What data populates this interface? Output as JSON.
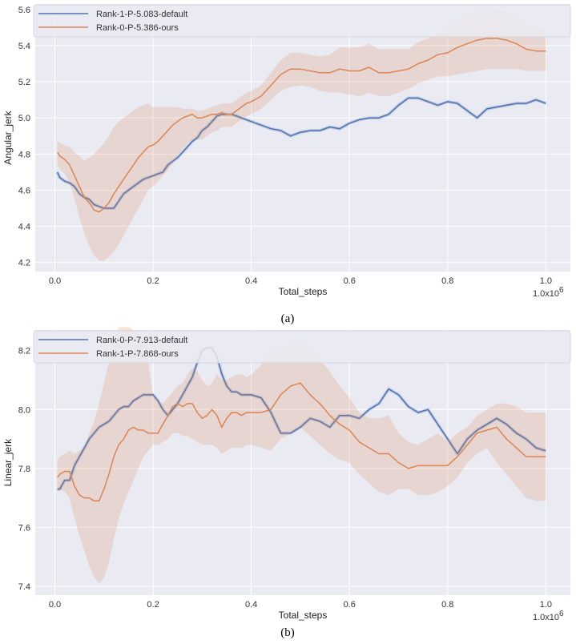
{
  "chart_data": [
    {
      "id": "a",
      "type": "line",
      "caption": "(a)",
      "xlabel": "Total_steps",
      "ylabel": "Angular_jerk",
      "x_multiplier_label": "1.0x10",
      "x_multiplier_exp": "6",
      "xlim": [
        -0.04,
        1.05
      ],
      "ylim": [
        4.15,
        5.63
      ],
      "xticks": [
        0.0,
        0.2,
        0.4,
        0.6,
        0.8,
        1.0
      ],
      "xtick_labels": [
        "0.0",
        "0.2",
        "0.4",
        "0.6",
        "0.8",
        "1.0"
      ],
      "yticks": [
        4.2,
        4.4,
        4.6,
        4.8,
        5.0,
        5.2,
        5.4,
        5.6
      ],
      "ytick_labels": [
        "4.2",
        "4.4",
        "4.6",
        "4.8",
        "5.0",
        "5.2",
        "5.4",
        "5.6"
      ],
      "legend_position": "top-left",
      "series": [
        {
          "name": "Rank-1-P-5.083-default",
          "color": "#4c72b0",
          "x": [
            0.005,
            0.01,
            0.02,
            0.03,
            0.04,
            0.05,
            0.06,
            0.07,
            0.08,
            0.09,
            0.1,
            0.11,
            0.12,
            0.13,
            0.14,
            0.15,
            0.16,
            0.17,
            0.18,
            0.19,
            0.2,
            0.21,
            0.22,
            0.23,
            0.24,
            0.25,
            0.26,
            0.27,
            0.28,
            0.29,
            0.3,
            0.31,
            0.32,
            0.33,
            0.34,
            0.35,
            0.36,
            0.37,
            0.38,
            0.39,
            0.4,
            0.42,
            0.44,
            0.46,
            0.48,
            0.5,
            0.52,
            0.54,
            0.56,
            0.58,
            0.6,
            0.62,
            0.64,
            0.66,
            0.68,
            0.7,
            0.72,
            0.74,
            0.76,
            0.78,
            0.8,
            0.82,
            0.84,
            0.86,
            0.88,
            0.9,
            0.92,
            0.94,
            0.96,
            0.98,
            1.0
          ],
          "y": [
            4.7,
            4.67,
            4.65,
            4.64,
            4.62,
            4.58,
            4.56,
            4.55,
            4.52,
            4.51,
            4.5,
            4.5,
            4.5,
            4.54,
            4.58,
            4.6,
            4.62,
            4.64,
            4.66,
            4.67,
            4.68,
            4.69,
            4.7,
            4.74,
            4.76,
            4.78,
            4.81,
            4.84,
            4.87,
            4.89,
            4.93,
            4.95,
            4.98,
            5.01,
            5.02,
            5.02,
            5.02,
            5.01,
            5.0,
            4.99,
            4.98,
            4.96,
            4.94,
            4.93,
            4.9,
            4.92,
            4.93,
            4.93,
            4.95,
            4.94,
            4.97,
            4.99,
            5.0,
            5.0,
            5.02,
            5.07,
            5.11,
            5.11,
            5.09,
            5.07,
            5.09,
            5.08,
            5.04,
            5.0,
            5.05,
            5.06,
            5.07,
            5.08,
            5.08,
            5.1,
            5.08
          ],
          "band_lower": [],
          "band_upper": []
        },
        {
          "name": "Rank-0-P-5.386-ours",
          "color": "#dd8452",
          "x": [
            0.005,
            0.01,
            0.02,
            0.03,
            0.04,
            0.05,
            0.06,
            0.07,
            0.08,
            0.09,
            0.1,
            0.11,
            0.12,
            0.13,
            0.14,
            0.15,
            0.16,
            0.17,
            0.18,
            0.19,
            0.2,
            0.21,
            0.22,
            0.23,
            0.24,
            0.25,
            0.26,
            0.27,
            0.28,
            0.29,
            0.3,
            0.31,
            0.32,
            0.33,
            0.34,
            0.35,
            0.36,
            0.37,
            0.38,
            0.39,
            0.4,
            0.42,
            0.44,
            0.46,
            0.48,
            0.5,
            0.52,
            0.54,
            0.56,
            0.58,
            0.6,
            0.62,
            0.64,
            0.66,
            0.68,
            0.7,
            0.72,
            0.74,
            0.76,
            0.78,
            0.8,
            0.82,
            0.84,
            0.86,
            0.88,
            0.9,
            0.92,
            0.94,
            0.96,
            0.98,
            1.0
          ],
          "y": [
            4.81,
            4.79,
            4.77,
            4.74,
            4.68,
            4.62,
            4.56,
            4.53,
            4.49,
            4.48,
            4.5,
            4.53,
            4.58,
            4.62,
            4.66,
            4.7,
            4.74,
            4.78,
            4.81,
            4.84,
            4.85,
            4.87,
            4.9,
            4.93,
            4.96,
            4.98,
            5.0,
            5.01,
            5.02,
            5.0,
            5.0,
            5.01,
            5.02,
            5.02,
            5.03,
            5.02,
            5.02,
            5.04,
            5.06,
            5.08,
            5.09,
            5.12,
            5.18,
            5.24,
            5.27,
            5.27,
            5.26,
            5.25,
            5.25,
            5.27,
            5.26,
            5.26,
            5.28,
            5.25,
            5.25,
            5.26,
            5.27,
            5.3,
            5.32,
            5.35,
            5.36,
            5.39,
            5.41,
            5.43,
            5.44,
            5.44,
            5.43,
            5.41,
            5.38,
            5.37,
            5.37
          ],
          "band_lower": [
            4.74,
            4.72,
            4.69,
            4.64,
            4.55,
            4.45,
            4.36,
            4.29,
            4.24,
            4.21,
            4.21,
            4.23,
            4.26,
            4.3,
            4.35,
            4.4,
            4.45,
            4.5,
            4.55,
            4.6,
            4.62,
            4.65,
            4.68,
            4.71,
            4.75,
            4.79,
            4.83,
            4.86,
            4.88,
            4.88,
            4.88,
            4.9,
            4.92,
            4.93,
            4.95,
            4.95,
            4.95,
            4.97,
            4.99,
            5.01,
            5.02,
            5.05,
            5.1,
            5.15,
            5.17,
            5.18,
            5.17,
            5.15,
            5.14,
            5.14,
            5.13,
            5.12,
            5.14,
            5.12,
            5.12,
            5.14,
            5.16,
            5.19,
            5.21,
            5.23,
            5.23,
            5.24,
            5.25,
            5.26,
            5.27,
            5.27,
            5.27,
            5.27,
            5.26,
            5.26,
            5.26
          ],
          "band_upper": [
            4.88,
            4.86,
            4.85,
            4.84,
            4.81,
            4.79,
            4.76,
            4.78,
            4.8,
            4.83,
            4.86,
            4.9,
            4.95,
            4.98,
            5.0,
            5.02,
            5.04,
            5.06,
            5.07,
            5.08,
            5.06,
            5.06,
            5.06,
            5.06,
            5.06,
            5.06,
            5.05,
            5.05,
            5.05,
            5.04,
            5.04,
            5.05,
            5.06,
            5.07,
            5.08,
            5.08,
            5.08,
            5.1,
            5.12,
            5.14,
            5.15,
            5.18,
            5.25,
            5.32,
            5.36,
            5.36,
            5.35,
            5.34,
            5.35,
            5.39,
            5.39,
            5.39,
            5.41,
            5.38,
            5.38,
            5.38,
            5.38,
            5.42,
            5.44,
            5.47,
            5.5,
            5.54,
            5.57,
            5.6,
            5.61,
            5.6,
            5.59,
            5.56,
            5.51,
            5.49,
            5.48
          ]
        }
      ]
    },
    {
      "id": "b",
      "type": "line",
      "caption": "(b)",
      "xlabel": "Total_steps",
      "ylabel": "Linear_jerk",
      "x_multiplier_label": "1.0x10",
      "x_multiplier_exp": "6",
      "xlim": [
        -0.04,
        1.05
      ],
      "ylim": [
        7.37,
        8.27
      ],
      "xticks": [
        0.0,
        0.2,
        0.4,
        0.6,
        0.8,
        1.0
      ],
      "xtick_labels": [
        "0.0",
        "0.2",
        "0.4",
        "0.6",
        "0.8",
        "1.0"
      ],
      "yticks": [
        7.4,
        7.6,
        7.8,
        8.0,
        8.2
      ],
      "ytick_labels": [
        "7.4",
        "7.6",
        "7.8",
        "8.0",
        "8.2"
      ],
      "legend_position": "top-left",
      "series": [
        {
          "name": "Rank-0-P-7.913-default",
          "color": "#4c72b0",
          "x": [
            0.005,
            0.01,
            0.02,
            0.03,
            0.04,
            0.05,
            0.06,
            0.07,
            0.08,
            0.09,
            0.1,
            0.11,
            0.12,
            0.13,
            0.14,
            0.15,
            0.16,
            0.17,
            0.18,
            0.19,
            0.2,
            0.21,
            0.22,
            0.23,
            0.24,
            0.25,
            0.26,
            0.27,
            0.28,
            0.29,
            0.3,
            0.31,
            0.32,
            0.33,
            0.34,
            0.35,
            0.36,
            0.37,
            0.38,
            0.39,
            0.4,
            0.42,
            0.44,
            0.46,
            0.48,
            0.5,
            0.52,
            0.54,
            0.56,
            0.58,
            0.6,
            0.62,
            0.64,
            0.66,
            0.68,
            0.7,
            0.72,
            0.74,
            0.76,
            0.78,
            0.8,
            0.82,
            0.84,
            0.86,
            0.88,
            0.9,
            0.92,
            0.94,
            0.96,
            0.98,
            1.0
          ],
          "y": [
            7.73,
            7.73,
            7.76,
            7.76,
            7.81,
            7.84,
            7.87,
            7.9,
            7.92,
            7.94,
            7.95,
            7.96,
            7.98,
            8.0,
            8.01,
            8.01,
            8.03,
            8.04,
            8.05,
            8.05,
            8.05,
            8.03,
            8.0,
            7.98,
            8.0,
            8.02,
            8.05,
            8.08,
            8.11,
            8.16,
            8.2,
            8.21,
            8.21,
            8.18,
            8.12,
            8.08,
            8.06,
            8.06,
            8.05,
            8.05,
            8.05,
            8.04,
            7.99,
            7.92,
            7.92,
            7.94,
            7.97,
            7.96,
            7.94,
            7.98,
            7.98,
            7.97,
            8.0,
            8.02,
            8.07,
            8.05,
            8.01,
            7.99,
            8.0,
            7.95,
            7.9,
            7.85,
            7.9,
            7.93,
            7.95,
            7.97,
            7.95,
            7.92,
            7.9,
            7.87,
            7.86
          ],
          "band_lower": [],
          "band_upper": []
        },
        {
          "name": "Rank-1-P-7.868-ours",
          "color": "#dd8452",
          "x": [
            0.005,
            0.01,
            0.02,
            0.03,
            0.04,
            0.05,
            0.06,
            0.07,
            0.08,
            0.09,
            0.1,
            0.11,
            0.12,
            0.13,
            0.14,
            0.15,
            0.16,
            0.17,
            0.18,
            0.19,
            0.2,
            0.21,
            0.22,
            0.23,
            0.24,
            0.25,
            0.26,
            0.27,
            0.28,
            0.29,
            0.3,
            0.31,
            0.32,
            0.33,
            0.34,
            0.35,
            0.36,
            0.37,
            0.38,
            0.39,
            0.4,
            0.42,
            0.44,
            0.46,
            0.48,
            0.5,
            0.52,
            0.54,
            0.56,
            0.58,
            0.6,
            0.62,
            0.64,
            0.66,
            0.68,
            0.7,
            0.72,
            0.74,
            0.76,
            0.78,
            0.8,
            0.82,
            0.84,
            0.86,
            0.88,
            0.9,
            0.92,
            0.94,
            0.96,
            0.98,
            1.0
          ],
          "y": [
            7.77,
            7.78,
            7.79,
            7.79,
            7.74,
            7.71,
            7.7,
            7.7,
            7.69,
            7.69,
            7.73,
            7.78,
            7.84,
            7.88,
            7.9,
            7.93,
            7.94,
            7.93,
            7.93,
            7.92,
            7.92,
            7.92,
            7.95,
            7.98,
            8.01,
            8.02,
            8.01,
            8.02,
            8.02,
            7.99,
            7.97,
            7.98,
            8.0,
            7.98,
            7.94,
            7.97,
            7.99,
            7.99,
            7.98,
            7.99,
            7.99,
            7.99,
            8.0,
            8.05,
            8.08,
            8.09,
            8.05,
            8.02,
            7.98,
            7.95,
            7.93,
            7.89,
            7.87,
            7.85,
            7.85,
            7.82,
            7.8,
            7.81,
            7.81,
            7.81,
            7.81,
            7.84,
            7.88,
            7.92,
            7.93,
            7.94,
            7.9,
            7.87,
            7.84,
            7.84,
            7.84
          ],
          "band_lower": [
            7.72,
            7.73,
            7.72,
            7.7,
            7.63,
            7.57,
            7.52,
            7.47,
            7.43,
            7.41,
            7.43,
            7.48,
            7.56,
            7.63,
            7.68,
            7.72,
            7.76,
            7.8,
            7.84,
            7.86,
            7.88,
            7.88,
            7.89,
            7.9,
            7.92,
            7.92,
            7.91,
            7.91,
            7.9,
            7.89,
            7.88,
            7.88,
            7.88,
            7.87,
            7.85,
            7.86,
            7.87,
            7.87,
            7.87,
            7.88,
            7.88,
            7.87,
            7.86,
            7.9,
            7.92,
            7.94,
            7.91,
            7.88,
            7.85,
            7.83,
            7.82,
            7.78,
            7.75,
            7.72,
            7.71,
            7.73,
            7.73,
            7.71,
            7.71,
            7.72,
            7.74,
            7.77,
            7.82,
            7.85,
            7.87,
            7.82,
            7.78,
            7.74,
            7.7,
            7.69,
            7.69
          ],
          "band_upper": [
            7.83,
            7.84,
            7.85,
            7.86,
            7.85,
            7.86,
            7.87,
            7.92,
            7.96,
            8.02,
            8.09,
            8.16,
            8.24,
            8.28,
            8.28,
            8.28,
            8.27,
            8.24,
            8.21,
            8.16,
            8.05,
            8.03,
            8.02,
            8.04,
            8.06,
            8.08,
            8.09,
            8.12,
            8.14,
            8.13,
            8.1,
            8.08,
            8.09,
            8.12,
            8.1,
            8.1,
            8.11,
            8.12,
            8.12,
            8.11,
            8.12,
            8.15,
            8.2,
            8.2,
            8.22,
            8.24,
            8.2,
            8.17,
            8.13,
            8.08,
            8.04,
            7.99,
            7.97,
            7.97,
            7.98,
            7.92,
            7.89,
            7.88,
            7.9,
            7.92,
            7.89,
            7.92,
            7.94,
            7.98,
            8.0,
            8.02,
            8.02,
            8.01,
            7.99,
            7.99,
            7.99
          ]
        }
      ]
    }
  ]
}
